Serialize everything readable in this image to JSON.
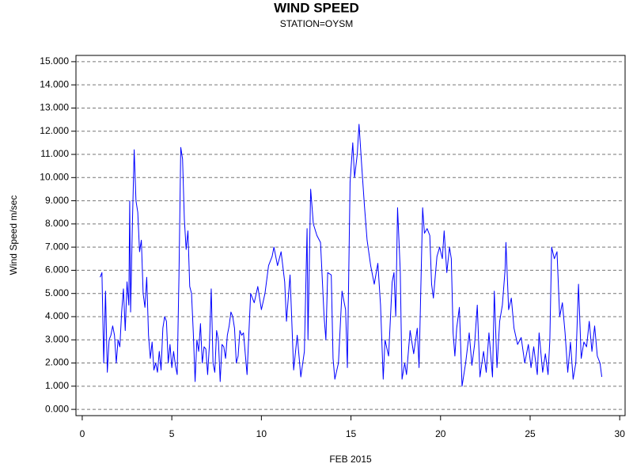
{
  "chart_data": {
    "type": "line",
    "title": "WIND SPEED",
    "subtitle": "STATION=OYSM",
    "y_label": "Wind Speed m/sec",
    "x_label": "FEB 2015",
    "color": "#0000ff",
    "grid": true,
    "xlim": [
      -0.35,
      30.3
    ],
    "ylim": [
      -0.27,
      15.27
    ],
    "xticks": [
      0,
      5,
      10,
      15,
      20,
      25,
      30
    ],
    "yticks": [
      {
        "value": 0,
        "label": "0.000"
      },
      {
        "value": 1,
        "label": "1.000"
      },
      {
        "value": 2,
        "label": "2.000"
      },
      {
        "value": 3,
        "label": "3.000"
      },
      {
        "value": 4,
        "label": "4.000"
      },
      {
        "value": 5,
        "label": "5.000"
      },
      {
        "value": 6,
        "label": "6.000"
      },
      {
        "value": 7,
        "label": "7.000"
      },
      {
        "value": 8,
        "label": "8.000"
      },
      {
        "value": 9,
        "label": "9.000"
      },
      {
        "value": 10,
        "label": "10.000"
      },
      {
        "value": 11,
        "label": "11.000"
      },
      {
        "value": 12,
        "label": "12.000"
      },
      {
        "value": 13,
        "label": "13.000"
      },
      {
        "value": 14,
        "label": "14.000"
      },
      {
        "value": 15,
        "label": "15.000"
      }
    ],
    "x": [
      1.0,
      1.1,
      1.2,
      1.3,
      1.4,
      1.5,
      1.6,
      1.7,
      1.8,
      1.9,
      2.0,
      2.1,
      2.2,
      2.3,
      2.4,
      2.5,
      2.6,
      2.65,
      2.7,
      2.8,
      2.9,
      3.0,
      3.1,
      3.2,
      3.3,
      3.4,
      3.5,
      3.6,
      3.7,
      3.8,
      3.9,
      4.0,
      4.1,
      4.2,
      4.3,
      4.4,
      4.5,
      4.6,
      4.7,
      4.8,
      4.9,
      5.0,
      5.1,
      5.2,
      5.3,
      5.4,
      5.5,
      5.6,
      5.7,
      5.8,
      5.9,
      6.0,
      6.1,
      6.2,
      6.3,
      6.4,
      6.5,
      6.6,
      6.7,
      6.8,
      6.9,
      7.0,
      7.1,
      7.2,
      7.3,
      7.4,
      7.5,
      7.6,
      7.7,
      7.8,
      7.9,
      8.0,
      8.1,
      8.2,
      8.3,
      8.4,
      8.5,
      8.6,
      8.7,
      8.8,
      8.9,
      9.0,
      9.2,
      9.4,
      9.6,
      9.8,
      10.0,
      10.2,
      10.4,
      10.6,
      10.7,
      10.9,
      11.1,
      11.3,
      11.4,
      11.6,
      11.8,
      12.0,
      12.2,
      12.4,
      12.55,
      12.6,
      12.75,
      12.9,
      13.1,
      13.3,
      13.5,
      13.6,
      13.7,
      13.9,
      14.0,
      14.1,
      14.3,
      14.5,
      14.7,
      14.8,
      14.95,
      15.1,
      15.2,
      15.35,
      15.45,
      15.6,
      15.75,
      15.9,
      16.1,
      16.3,
      16.5,
      16.65,
      16.8,
      16.9,
      17.1,
      17.3,
      17.4,
      17.5,
      17.6,
      17.75,
      17.85,
      18.0,
      18.1,
      18.3,
      18.5,
      18.7,
      18.8,
      19.0,
      19.1,
      19.25,
      19.4,
      19.5,
      19.6,
      19.8,
      19.95,
      20.1,
      20.2,
      20.35,
      20.5,
      20.6,
      20.7,
      20.8,
      20.9,
      21.05,
      21.2,
      21.4,
      21.6,
      21.75,
      21.9,
      22.05,
      22.2,
      22.4,
      22.55,
      22.7,
      22.9,
      23.0,
      23.15,
      23.3,
      23.45,
      23.6,
      23.65,
      23.8,
      23.95,
      24.1,
      24.3,
      24.5,
      24.7,
      24.9,
      25.05,
      25.2,
      25.4,
      25.5,
      25.7,
      25.85,
      26.0,
      26.1,
      26.2,
      26.35,
      26.5,
      26.65,
      26.8,
      26.95,
      27.1,
      27.25,
      27.4,
      27.55,
      27.7,
      27.85,
      28.0,
      28.15,
      28.3,
      28.45,
      28.6,
      28.75,
      28.9,
      29.0
    ],
    "values": [
      5.7,
      5.9,
      2.0,
      5.1,
      1.6,
      3.0,
      3.2,
      3.6,
      3.2,
      2.0,
      3.0,
      2.7,
      4.2,
      5.2,
      3.4,
      5.5,
      4.5,
      9.0,
      4.2,
      8.0,
      11.2,
      9.0,
      8.5,
      6.8,
      7.3,
      5.0,
      4.4,
      5.7,
      3.2,
      2.2,
      2.9,
      1.7,
      2.0,
      1.6,
      2.5,
      1.7,
      3.5,
      4.0,
      3.8,
      2.0,
      2.8,
      1.8,
      2.5,
      1.9,
      1.5,
      5.8,
      11.3,
      10.8,
      8.2,
      6.9,
      7.7,
      5.3,
      5.0,
      3.3,
      1.2,
      3.0,
      2.5,
      3.7,
      2.0,
      2.7,
      2.6,
      1.5,
      2.8,
      5.2,
      2.0,
      1.6,
      3.4,
      3.0,
      1.2,
      2.8,
      2.7,
      2.2,
      3.2,
      3.6,
      4.2,
      4.0,
      3.5,
      2.0,
      2.3,
      3.4,
      3.2,
      3.3,
      1.5,
      5.0,
      4.6,
      5.3,
      4.3,
      5.0,
      6.2,
      6.6,
      7.0,
      6.2,
      6.8,
      5.5,
      3.8,
      5.8,
      1.7,
      3.2,
      1.4,
      2.5,
      7.8,
      3.0,
      9.5,
      8.0,
      7.5,
      7.2,
      4.0,
      3.0,
      5.9,
      5.8,
      2.2,
      1.3,
      2.0,
      5.1,
      4.3,
      1.8,
      9.8,
      11.5,
      10.0,
      11.0,
      12.3,
      10.5,
      8.8,
      7.3,
      6.2,
      5.4,
      6.3,
      4.5,
      1.3,
      3.0,
      2.3,
      5.5,
      5.9,
      4.0,
      8.7,
      6.0,
      1.3,
      2.0,
      1.5,
      3.4,
      2.4,
      3.5,
      1.8,
      8.7,
      7.6,
      7.8,
      7.5,
      5.4,
      4.8,
      6.6,
      7.0,
      6.5,
      7.7,
      5.9,
      7.0,
      6.5,
      3.3,
      2.3,
      3.5,
      4.4,
      1.0,
      2.0,
      3.3,
      1.9,
      2.8,
      4.5,
      1.4,
      2.5,
      1.6,
      3.3,
      1.4,
      5.1,
      1.8,
      3.8,
      4.5,
      6.0,
      7.2,
      4.3,
      4.8,
      3.5,
      2.8,
      3.1,
      2.0,
      2.8,
      1.8,
      2.7,
      1.5,
      3.3,
      1.6,
      2.4,
      1.5,
      3.0,
      7.0,
      6.5,
      6.8,
      4.0,
      4.6,
      3.3,
      1.6,
      2.9,
      1.3,
      2.0,
      5.4,
      2.2,
      2.9,
      2.7,
      3.8,
      2.5,
      3.6,
      2.3,
      2.0,
      1.4
    ]
  }
}
